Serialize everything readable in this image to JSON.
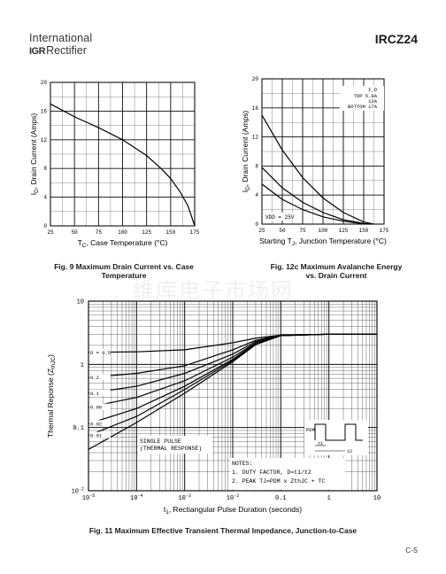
{
  "header": {
    "company_line1": "International",
    "logo_mark": "IGR",
    "company_line2": "Rectifier",
    "part_number": "IRCZ24"
  },
  "figures": {
    "fig9_caption": [
      "Fig. 9 Maximum Drain Current vs. Case",
      "Temperature"
    ],
    "fig12c_caption": [
      "Fig. 12c Maximum Avalanche Energy",
      "vs. Drain Current"
    ],
    "fig11_caption": "Fig. 11 Maximum Effective Transient Thermal Impedance, Junction-to-Case"
  },
  "page_number": "C-5",
  "watermark": "维库电子市场网",
  "chart_data": [
    {
      "id": "fig9",
      "type": "line",
      "xlabel": "T_C, Case Temperature (°C)",
      "ylabel": "I_D, Drain Current (Amps)",
      "xlim": [
        25,
        175
      ],
      "ylim": [
        0,
        20
      ],
      "x_ticks": [
        25,
        50,
        75,
        100,
        125,
        150,
        175
      ],
      "y_ticks": [
        0,
        4,
        8,
        12,
        16,
        20
      ],
      "grid": true,
      "series": [
        {
          "x": [
            25,
            50,
            75,
            100,
            125,
            140,
            150,
            160,
            168,
            175
          ],
          "y": [
            17.0,
            15.2,
            13.7,
            12.0,
            9.8,
            8.0,
            6.6,
            4.7,
            2.8,
            0
          ]
        }
      ]
    },
    {
      "id": "fig12c",
      "type": "line",
      "xlabel": "Starting T_J, Junction Temperature (°C)",
      "ylabel": "I_D, Drain Current (Amps)",
      "xlim": [
        25,
        175
      ],
      "ylim": [
        0,
        20
      ],
      "x_ticks": [
        25,
        50,
        75,
        100,
        125,
        150,
        175
      ],
      "y_ticks": [
        0,
        4,
        8,
        12,
        16,
        20
      ],
      "grid": true,
      "legend": {
        "header": "I_D",
        "rows": [
          "TOP    5.8A",
          "12A",
          "BOTTOM 17A"
        ]
      },
      "annotation": "VDD = 25V",
      "series": [
        {
          "name": "TOP 5.8A",
          "x": [
            25,
            50,
            75,
            100,
            125,
            150,
            162
          ],
          "y": [
            15.0,
            10.2,
            6.4,
            3.6,
            1.6,
            0.3,
            0
          ]
        },
        {
          "name": "12A",
          "x": [
            25,
            50,
            75,
            100,
            125,
            150,
            160
          ],
          "y": [
            7.8,
            5.0,
            3.0,
            1.6,
            0.6,
            0.1,
            0
          ]
        },
        {
          "name": "BOTTOM 17A",
          "x": [
            25,
            50,
            75,
            100,
            125,
            150,
            158
          ],
          "y": [
            5.5,
            3.4,
            2.0,
            1.0,
            0.4,
            0.05,
            0
          ]
        }
      ]
    },
    {
      "id": "fig11",
      "type": "line",
      "xlabel": "t_1, Rectiangular Pulse Duration (seconds)",
      "ylabel": "Thermal Reponse (Z_thJC)",
      "xscale": "log",
      "yscale": "log",
      "xlim": [
        1e-05,
        10
      ],
      "ylim": [
        0.01,
        10
      ],
      "x_ticks": [
        1e-05,
        0.0001,
        0.001,
        0.01,
        0.1,
        1,
        10
      ],
      "x_tick_labels": [
        "10-5",
        "10-4",
        "10-3",
        "10-2",
        "0.1",
        "1",
        "10"
      ],
      "y_ticks": [
        0.01,
        0.1,
        1,
        10
      ],
      "y_tick_labels": [
        "10-2",
        "0.1",
        "1",
        "10"
      ],
      "grid": true,
      "series_labels": [
        "D = 0.5",
        "0.2",
        "0.1",
        "0.05",
        "0.02",
        "0.01"
      ],
      "single_pulse_label": [
        "SINGLE PULSE",
        "(THERMAL RESPONSE)"
      ],
      "notes": [
        "NOTES:",
        "1. DUTY FACTOR, D=t1/t2",
        "2. PEAK TJ=PDM x ZthJC + TC"
      ],
      "inset_labels": {
        "pdm": "PDM",
        "t1": "t1",
        "t2": "t2"
      },
      "series": [
        {
          "name": "D = 0.5",
          "x": [
            1e-05,
            0.0001,
            0.001,
            0.01,
            0.03,
            0.1,
            1,
            10
          ],
          "y": [
            1.55,
            1.58,
            1.7,
            2.2,
            2.6,
            2.9,
            3.0,
            3.0
          ]
        },
        {
          "name": "0.2",
          "x": [
            1e-05,
            0.0001,
            0.001,
            0.01,
            0.03,
            0.1,
            1,
            10
          ],
          "y": [
            0.62,
            0.72,
            0.95,
            1.7,
            2.4,
            2.9,
            3.0,
            3.0
          ]
        },
        {
          "name": "0.1",
          "x": [
            1e-05,
            0.0001,
            0.001,
            0.01,
            0.03,
            0.1,
            1,
            10
          ],
          "y": [
            0.35,
            0.45,
            0.72,
            1.45,
            2.3,
            2.9,
            3.0,
            3.0
          ]
        },
        {
          "name": "0.05",
          "x": [
            1e-05,
            0.0001,
            0.001,
            0.01,
            0.03,
            0.1,
            1,
            10
          ],
          "y": [
            0.21,
            0.3,
            0.55,
            1.3,
            2.2,
            2.85,
            3.0,
            3.0
          ]
        },
        {
          "name": "0.02",
          "x": [
            1e-05,
            0.0001,
            0.001,
            0.01,
            0.03,
            0.1,
            1,
            10
          ],
          "y": [
            0.115,
            0.2,
            0.45,
            1.2,
            2.15,
            2.85,
            3.0,
            3.0
          ]
        },
        {
          "name": "0.01",
          "x": [
            1e-05,
            0.0001,
            0.001,
            0.01,
            0.03,
            0.1,
            1,
            10
          ],
          "y": [
            0.075,
            0.15,
            0.4,
            1.15,
            2.1,
            2.85,
            3.0,
            3.0
          ]
        },
        {
          "name": "SINGLE PULSE",
          "x": [
            1e-05,
            0.0001,
            0.001,
            0.01,
            0.03,
            0.1,
            1,
            10
          ],
          "y": [
            0.045,
            0.12,
            0.35,
            1.1,
            2.05,
            2.85,
            3.0,
            3.0
          ]
        }
      ]
    }
  ]
}
